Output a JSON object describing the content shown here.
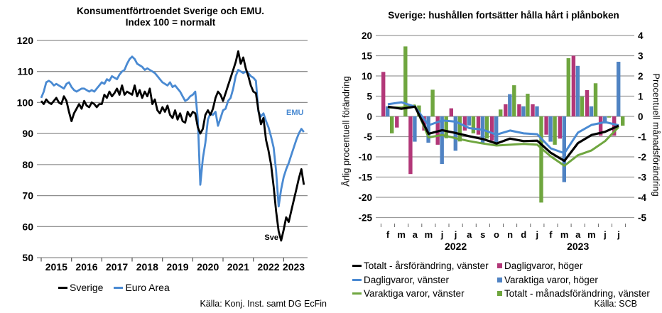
{
  "left_chart": {
    "title_line1": "Konsumentförtroendet Sverige och EMU.",
    "title_line2": "Index 100 = normalt",
    "source": "Källa: Konj. Inst. samt DG EcFin",
    "annotation_sve": "Sve",
    "annotation_emu": "EMU",
    "legend": [
      {
        "label": "Sverige",
        "color": "#000000",
        "marker": "line"
      },
      {
        "label": "Euro Area",
        "color": "#4a8ad2",
        "marker": "line"
      }
    ]
  },
  "right_chart": {
    "title": "Sverige: hushållen fortsätter hålla hårt i plånboken",
    "ylabel_left": "Årlig procentuell förändring",
    "ylabel_right": "Procentuell månadsförändring",
    "source": "Källa: SCB",
    "legend_col1": [
      {
        "label": "Totalt - årsförändring, vänster",
        "color": "#000000",
        "marker": "line"
      },
      {
        "label": "Dagligvaror, vänster",
        "color": "#4a8ad2",
        "marker": "line"
      },
      {
        "label": "Varaktiga varor, vänster",
        "color": "#6fa63f",
        "marker": "line"
      }
    ],
    "legend_col2": [
      {
        "label": "Dagligvaror, höger",
        "color": "#b23778",
        "marker": "square"
      },
      {
        "label": "Varaktiga varor, höger",
        "color": "#5083c3",
        "marker": "square"
      },
      {
        "label": "Totalt - månadsförändring, vänster",
        "color": "#6fa63f",
        "marker": "square"
      }
    ]
  },
  "chart_data": [
    {
      "type": "line",
      "title": "Konsumentförtroendet Sverige och EMU. Index 100 = normalt",
      "x_start": "2015-01",
      "x_end": "2023-09",
      "x_year_labels": [
        "2015",
        "2016",
        "2017",
        "2018",
        "2019",
        "2020",
        "2021",
        "2022",
        "2023"
      ],
      "ylim": [
        50,
        120
      ],
      "y_ticks": [
        120,
        110,
        100,
        90,
        80,
        70,
        60,
        50
      ],
      "grid": true,
      "legend_position": "bottom-left",
      "series": [
        {
          "name": "Sverige",
          "color": "#000000",
          "values": [
            100.5,
            99.5,
            101,
            100,
            99.5,
            100.5,
            101.5,
            100,
            99.5,
            102,
            100.5,
            97,
            94,
            96.5,
            98,
            99.5,
            98,
            100.5,
            99,
            98.5,
            100,
            99.5,
            98.5,
            99.5,
            99.5,
            102.5,
            101.5,
            103.5,
            102,
            103,
            104.5,
            102.5,
            105.5,
            102.5,
            103.5,
            103,
            102.5,
            105.5,
            102,
            104,
            101.5,
            103.5,
            102,
            104.5,
            99.5,
            101,
            97.5,
            96.5,
            98.5,
            97,
            99,
            96,
            95,
            97.5,
            94.5,
            96.5,
            94,
            93.5,
            97,
            95.5,
            97,
            96.5,
            92,
            90,
            91.5,
            96,
            97.5,
            96,
            98,
            101.5,
            103.5,
            102.5,
            100.5,
            103,
            105.5,
            108,
            110.5,
            113,
            116.5,
            112.5,
            114.5,
            111,
            108.5,
            105.5,
            103.5,
            103,
            97.5,
            93,
            95,
            88,
            84.5,
            80,
            73,
            65,
            58.5,
            55.5,
            59,
            63,
            61.5,
            65,
            68.5,
            72,
            75.5,
            78.5,
            73.5
          ]
        },
        {
          "name": "Euro Area",
          "color": "#4a8ad2",
          "values": [
            101.5,
            103.5,
            106.5,
            107,
            106.5,
            105.5,
            106,
            105.5,
            105,
            104.5,
            106,
            106.5,
            105,
            104,
            103.5,
            104,
            104.5,
            104.5,
            104,
            103.5,
            104,
            103.5,
            104.5,
            105.5,
            106.5,
            106,
            107.5,
            107,
            108.5,
            108,
            107.5,
            109,
            110,
            110.5,
            112.5,
            114,
            114.8,
            114,
            112.5,
            112,
            111.5,
            110.5,
            111,
            110.5,
            110,
            109.5,
            108.5,
            107.5,
            106.5,
            106,
            105.5,
            106.5,
            105,
            105.5,
            104.5,
            103.5,
            102,
            100.5,
            101,
            102,
            102.5,
            103.5,
            94.5,
            73.5,
            82,
            87,
            94.5,
            96.5,
            96,
            97,
            92.5,
            95,
            97.5,
            98,
            100.5,
            101.5,
            104.5,
            108.5,
            110.5,
            110,
            109.5,
            110,
            109.5,
            108.5,
            108,
            107,
            97,
            95.5,
            96.5,
            94,
            92,
            89,
            85.5,
            78,
            66.5,
            72,
            76,
            78.5,
            80.5,
            83,
            85.5,
            88,
            90,
            91.5,
            90.5
          ]
        }
      ]
    },
    {
      "type": "bar+line",
      "title": "Sverige: hushållen fortsätter hålla hårt i plånboken",
      "categories": [
        "f",
        "m",
        "a",
        "m",
        "j",
        "j",
        "a",
        "s",
        "o",
        "n",
        "d",
        "j",
        "f",
        "m",
        "a",
        "m",
        "j",
        "j"
      ],
      "year_labels": [
        {
          "label": "2022",
          "at_index": 5
        },
        {
          "label": "2023",
          "at_index": 14
        }
      ],
      "ylabel_left": "Årlig procentuell förändring",
      "ylabel_right": "Procentuell månadsförändring",
      "ylim_left": [
        -25,
        20
      ],
      "ylim_right": [
        -5,
        4
      ],
      "y_ticks_left": [
        20,
        15,
        10,
        5,
        0,
        -5,
        -10,
        -15,
        -20,
        -25
      ],
      "y_ticks_right": [
        4,
        3,
        2,
        1,
        0,
        -1,
        -2,
        -3,
        -4,
        -5
      ],
      "grid": true,
      "legend_position": "bottom",
      "bar_series": [
        {
          "name": "Dagligvaror, höger",
          "axis": "right",
          "color": "#b23778",
          "values": [
            2.2,
            -0.55,
            -2.85,
            -0.7,
            -1.4,
            0.4,
            -0.7,
            -0.9,
            -1.2,
            0.6,
            0.6,
            0.6,
            -0.9,
            -1.1,
            3.0,
            1.3,
            -0.95,
            -0.95
          ]
        },
        {
          "name": "Varaktiga varor, höger",
          "axis": "right",
          "color": "#5083c3",
          "values": [
            0.5,
            0,
            -1.25,
            -1.3,
            -2.35,
            -1.7,
            -0.45,
            -1.35,
            -1.4,
            1.1,
            0.5,
            0.5,
            -1.25,
            -3.25,
            2.5,
            0.5,
            -0.35,
            2.7
          ]
        },
        {
          "name": "Totalt - månadsförändring, vänster",
          "axis": "left",
          "color": "#6fa63f",
          "values": [
            -4.2,
            17.3,
            2.7,
            6.6,
            -5.4,
            -6.2,
            -4.2,
            -5.5,
            1.7,
            7.7,
            5.6,
            -21.3,
            -7.0,
            14.4,
            4.9,
            8.2,
            -0.3,
            -2.3
          ]
        }
      ],
      "line_series": [
        {
          "name": "Totalt - årsförändring, vänster",
          "axis": "left",
          "color": "#000000",
          "values": [
            2.4,
            1.9,
            2.4,
            -4.3,
            -3.4,
            -4.1,
            -4.9,
            -5.6,
            -6.7,
            -5.5,
            -6.1,
            -6.0,
            -9.0,
            -11.0,
            -6.6,
            -4.6,
            -3.8,
            -2.3
          ]
        },
        {
          "name": "Dagligvaror, vänster",
          "axis": "left",
          "color": "#4a8ad2",
          "values": [
            3.0,
            3.5,
            2.4,
            -2.2,
            -1.0,
            -1.3,
            -2.9,
            -3.3,
            -4.5,
            -3.5,
            -4.2,
            -4.4,
            -7.9,
            -9.1,
            -4.0,
            -2.1,
            -1.4,
            -2.2
          ]
        },
        {
          "name": "Varaktiga varor, vänster",
          "axis": "left",
          "color": "#6fa63f",
          "values": [
            2.2,
            2.2,
            2.7,
            -5.2,
            -4.6,
            -5.4,
            -6.1,
            -6.7,
            -7.2,
            -7.0,
            -6.8,
            -7.0,
            -9.9,
            -12.2,
            -9.6,
            -8.4,
            -6.1,
            -2.6
          ]
        }
      ]
    }
  ]
}
